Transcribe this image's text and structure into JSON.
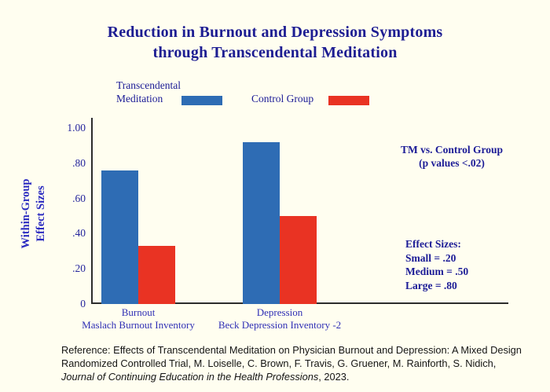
{
  "page": {
    "background_color": "#fffef0"
  },
  "title": {
    "line1": "Reduction in Burnout and Depression Symptoms",
    "line2": "through Transcendental Meditation",
    "color": "#1d1d92"
  },
  "legend": {
    "tm_label_line1": "Transcendental",
    "tm_label_line2": "Meditation",
    "tm_swatch_color": "#2e6cb4",
    "control_label": "Control Group",
    "control_swatch_color": "#e93323"
  },
  "chart_data": {
    "type": "bar",
    "title": "Reduction in Burnout and Depression Symptoms through Transcendental Meditation",
    "categories": [
      "Burnout",
      "Depression"
    ],
    "category_sublabels": [
      "Maslach Burnout Inventory",
      "Beck Depression Inventory -2"
    ],
    "series": [
      {
        "name": "Transcendental Meditation",
        "color": "#2e6cb4",
        "values": [
          0.76,
          0.92
        ]
      },
      {
        "name": "Control Group",
        "color": "#e93323",
        "values": [
          0.33,
          0.5
        ]
      }
    ],
    "ylabel": "Within-Group Effect Sizes",
    "ylabel_line1": "Within-Group",
    "ylabel_line2": "Effect Sizes",
    "ylim": [
      0,
      1.0
    ],
    "yticks": [
      {
        "value": 0.0,
        "label": "0"
      },
      {
        "value": 0.2,
        "label": ".20"
      },
      {
        "value": 0.4,
        "label": ".40"
      },
      {
        "value": 0.6,
        "label": ".60"
      },
      {
        "value": 0.8,
        "label": ".80"
      },
      {
        "value": 1.0,
        "label": "1.00"
      }
    ],
    "grid": false,
    "legend_position": "top"
  },
  "annotations": {
    "significance_line1": "TM vs. Control Group",
    "significance_line2": "(p values <.02)",
    "effect_sizes_title": "Effect Sizes:",
    "effect_sizes_small": "Small = .20",
    "effect_sizes_medium": "Medium = .50",
    "effect_sizes_large": "Large = .80"
  },
  "reference": {
    "line1": "Reference: Effects of Transcendental Meditation on Physician Burnout and Depression: A Mixed Design",
    "line2": "Randomized Controlled Trial, M. Loiselle, C. Brown, F. Travis, G. Gruener, M. Rainforth, S. Nidich,",
    "line3_italic": "Journal of Continuing Education in the Health Professions",
    "line3_rest": ", 2023."
  }
}
